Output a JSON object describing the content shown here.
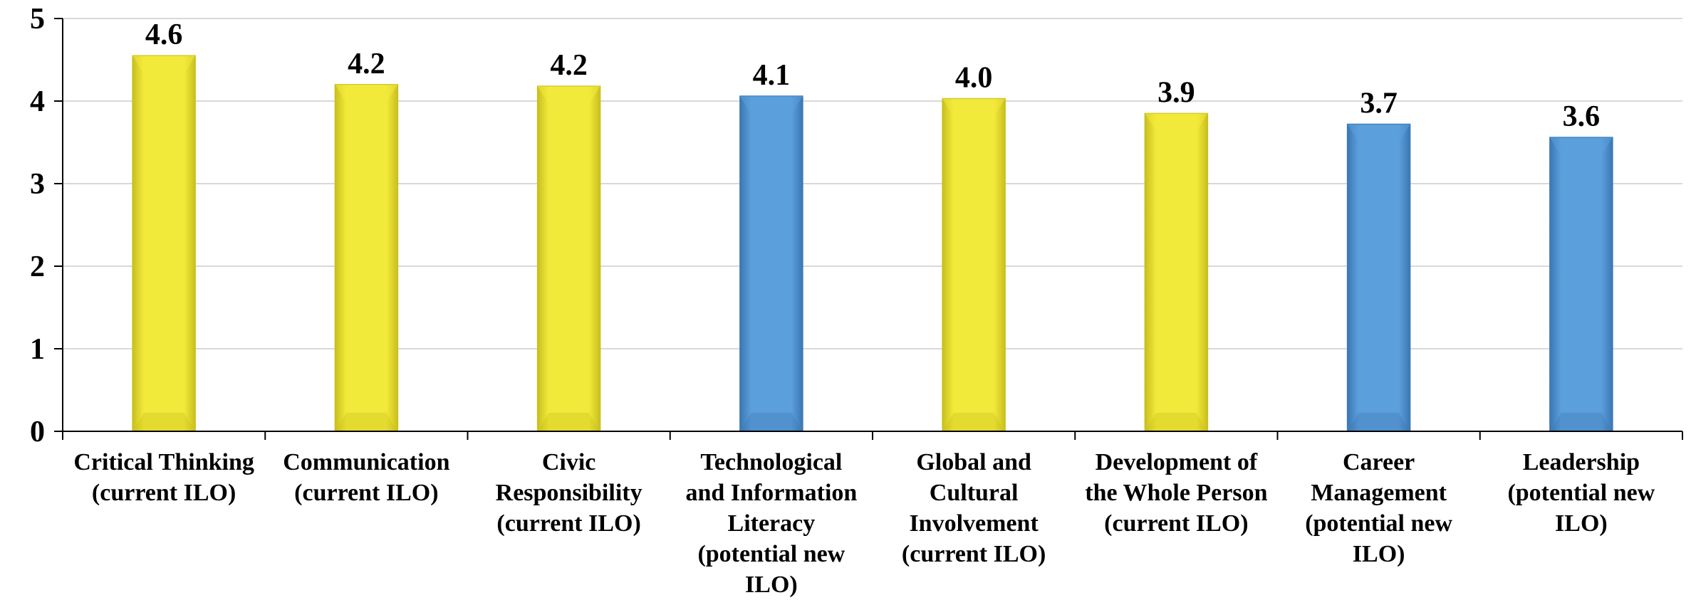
{
  "chart_data": {
    "type": "bar",
    "title": "",
    "xlabel": "",
    "ylabel": "",
    "ylim": [
      0,
      5
    ],
    "yticks": [
      "0",
      "1",
      "2",
      "3",
      "4",
      "5"
    ],
    "grid": true,
    "legend": "none",
    "categories": [
      "Critical Thinking\n(current ILO)",
      "Communication\n(current ILO)",
      "Civic\nResponsibility\n(current ILO)",
      "Technological\nand Information\nLiteracy\n(potential new\nILO)",
      "Global and\nCultural\nInvolvement\n(current ILO)",
      "Development of\nthe Whole Person\n(current ILO)",
      "Career\nManagement\n(potential new\nILO)",
      "Leadership\n(potential new\nILO)"
    ],
    "values": [
      4.55,
      4.2,
      4.18,
      4.06,
      4.03,
      3.85,
      3.72,
      3.56
    ],
    "labels": [
      "4.6",
      "4.2",
      "4.2",
      "4.1",
      "4.0",
      "3.9",
      "3.7",
      "3.6"
    ],
    "bar_colors": [
      "yellow",
      "yellow",
      "yellow",
      "blue",
      "yellow",
      "yellow",
      "blue",
      "blue"
    ]
  },
  "colors": {
    "yellow": "#f2ea3a",
    "yellow_dark": "#c9bf1e",
    "blue": "#5b9fdc",
    "blue_dark": "#3b78b4",
    "grid": "#d9d9d9",
    "axis": "#000000"
  }
}
